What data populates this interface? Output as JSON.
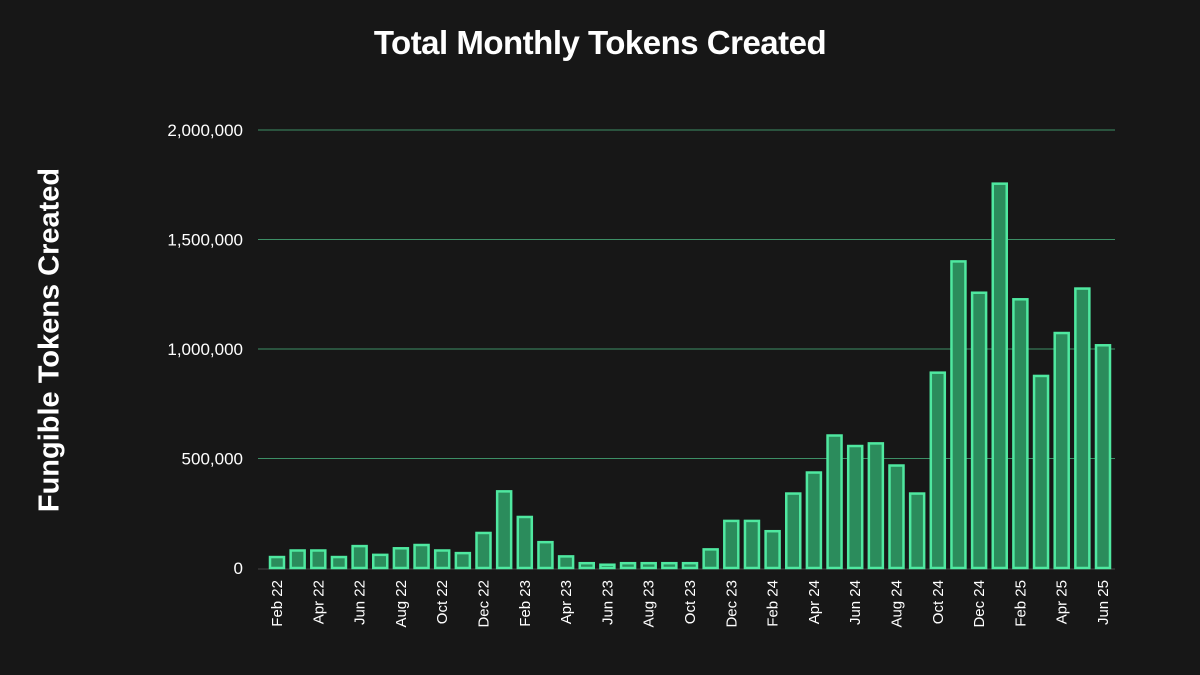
{
  "chart_data": {
    "type": "bar",
    "title": "Total Monthly Tokens Created",
    "xlabel": "",
    "ylabel": "Fungible Tokens Created",
    "ylim": [
      0,
      2000000
    ],
    "yticks": [
      0,
      500000,
      1000000,
      1500000,
      2000000
    ],
    "ytick_labels": [
      "0",
      "500,000",
      "1,000,000",
      "1,500,000",
      "2,000,000"
    ],
    "grid": true,
    "colors": {
      "background": "#171717",
      "bar_fill": "#2b8c5c",
      "bar_stroke": "#4fe8a0",
      "grid": "#3d8f66"
    },
    "categories": [
      "Feb 22",
      "Mar 22",
      "Apr 22",
      "May 22",
      "Jun 22",
      "Jul 22",
      "Aug 22",
      "Sep 22",
      "Oct 22",
      "Nov 22",
      "Dec 22",
      "Jan 23",
      "Feb 23",
      "Mar 23",
      "Apr 23",
      "May 23",
      "Jun 23",
      "Jul 23",
      "Aug 23",
      "Sep 23",
      "Oct 23",
      "Nov 23",
      "Dec 23",
      "Jan 24",
      "Feb 24",
      "Mar 24",
      "Apr 24",
      "May 24",
      "Jun 24",
      "Jul 24",
      "Aug 24",
      "Sep 24",
      "Oct 24",
      "Nov 24",
      "Dec 24",
      "Jan 25",
      "Feb 25",
      "Mar 25",
      "Apr 25",
      "May 25",
      "Jun 25"
    ],
    "shown_x_labels": [
      "Feb 22",
      "Apr 22",
      "Jun 22",
      "Aug 22",
      "Oct 22",
      "Dec 22",
      "Feb 23",
      "Apr 23",
      "Jun 23",
      "Aug 23",
      "Oct 23",
      "Dec 23",
      "Feb 24",
      "Apr 24",
      "Jun 24",
      "Aug 24",
      "Oct 24",
      "Dec 24",
      "Feb 25",
      "Apr 25",
      "Jun 25"
    ],
    "values": [
      50000,
      80000,
      80000,
      50000,
      100000,
      60000,
      90000,
      105000,
      80000,
      68000,
      160000,
      350000,
      233000,
      118000,
      53000,
      22000,
      15000,
      22000,
      22000,
      22000,
      22000,
      85000,
      215000,
      215000,
      168000,
      340000,
      436000,
      605000,
      557000,
      569000,
      468000,
      340000,
      892000,
      1400000,
      1257000,
      1755000,
      1227000,
      877000,
      1073000,
      1276000,
      1017000
    ]
  }
}
